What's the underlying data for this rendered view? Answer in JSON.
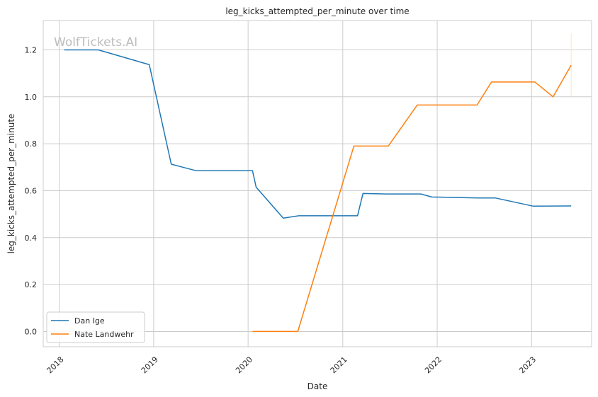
{
  "chart_data": {
    "type": "line",
    "title": "leg_kicks_attempted_per_minute over time",
    "xlabel": "Date",
    "ylabel": "leg_kicks_attempted_per_minute",
    "watermark": "WolfTickets.AI",
    "x_ticks": [
      "2018",
      "2019",
      "2020",
      "2021",
      "2022",
      "2023"
    ],
    "y_ticks": [
      "0.0",
      "0.2",
      "0.4",
      "0.6",
      "0.8",
      "1.0",
      "1.2"
    ],
    "xlim": [
      "2017-10-31",
      "2023-08-21"
    ],
    "ylim": [
      -0.065,
      1.325
    ],
    "grid": true,
    "legend_position": "lower-left",
    "series": [
      {
        "name": "Dan Ige",
        "color": "#1f77b4",
        "points": [
          [
            "2018-01-20",
            1.2
          ],
          [
            "2018-06-01",
            1.2
          ],
          [
            "2018-12-15",
            1.137
          ],
          [
            "2019-03-10",
            0.713
          ],
          [
            "2019-06-15",
            0.685
          ],
          [
            "2020-01-18",
            0.685
          ],
          [
            "2020-02-01",
            0.615
          ],
          [
            "2020-05-16",
            0.483
          ],
          [
            "2020-07-15",
            0.493
          ],
          [
            "2021-02-27",
            0.493
          ],
          [
            "2021-03-20",
            0.588
          ],
          [
            "2021-06-19",
            0.586
          ],
          [
            "2021-10-30",
            0.586
          ],
          [
            "2021-12-11",
            0.573
          ],
          [
            "2022-06-11",
            0.569
          ],
          [
            "2022-08-13",
            0.569
          ],
          [
            "2023-01-07",
            0.534
          ],
          [
            "2023-06-03",
            0.535
          ]
        ]
      },
      {
        "name": "Nate Landwehr",
        "color": "#ff7f0e",
        "points": [
          [
            "2020-01-18",
            0.0
          ],
          [
            "2020-07-11",
            0.0
          ],
          [
            "2021-02-13",
            0.79
          ],
          [
            "2021-06-26",
            0.79
          ],
          [
            "2021-10-16",
            0.965
          ],
          [
            "2022-06-04",
            0.965
          ],
          [
            "2022-07-30",
            1.063
          ],
          [
            "2023-01-14",
            1.063
          ],
          [
            "2023-03-25",
            1.0
          ],
          [
            "2023-06-03",
            1.135
          ]
        ]
      }
    ]
  }
}
